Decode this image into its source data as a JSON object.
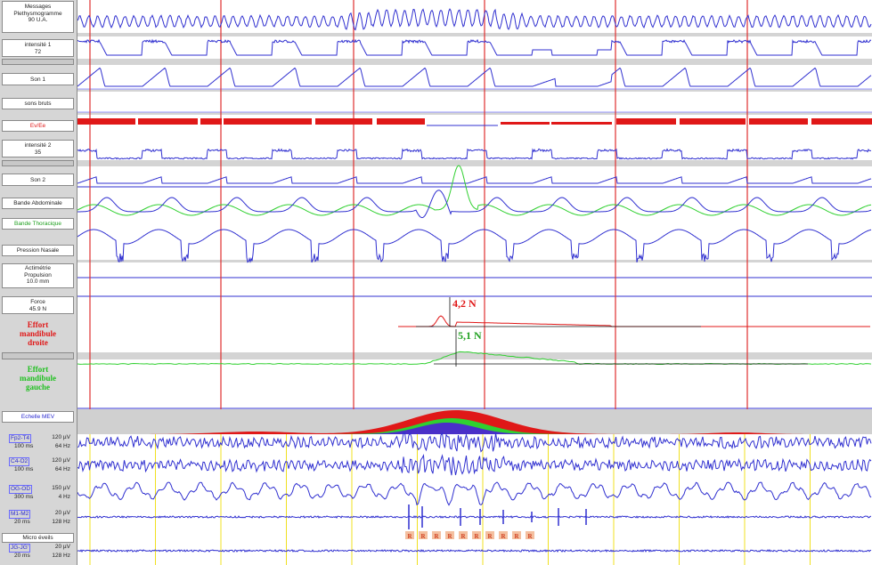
{
  "labels": {
    "messages": "Messages",
    "pleth": "Plethysmogramme",
    "pleth_val": "90 U.A.",
    "int1": "intensité 1",
    "int1_val": "72",
    "son1": "Son 1",
    "sons_bruts": "sons bruts",
    "evee": "Ev/Ee",
    "int2": "intensité 2",
    "int2_val": "35",
    "son2": "Son 2",
    "bande_abd": "Bande Abdominale",
    "bande_tho": "Bande Thoracique",
    "pression": "Pression Nasale",
    "actimetrie": "Actimétrie",
    "propulsion": "Propulsion",
    "propulsion_val": "10.0 mm",
    "force": "Force",
    "force_val": "45.9 N",
    "effort_d1": "Effort",
    "effort_d2": "mandibule",
    "effort_d3": "droite",
    "effort_g1": "Effort",
    "effort_g2": "mandibule",
    "effort_g3": "gauche",
    "echelle": "Echelle MEV",
    "micro": "Micro éveils"
  },
  "eeg": [
    {
      "chan": "Fp2-T4",
      "amp": "120 µV",
      "time": "100 ms",
      "freq": "64 Hz"
    },
    {
      "chan": "C4-O2",
      "amp": "120 µV",
      "time": "100 ms",
      "freq": "64 Hz"
    },
    {
      "chan": "OG-OD",
      "amp": "150 µV",
      "time": "300 ms",
      "freq": "4 Hz"
    },
    {
      "chan": "M1-M2",
      "amp": "20 µV",
      "time": "20 ms",
      "freq": "128 Hz"
    },
    {
      "chan": "JG-JG'",
      "amp": "20 µV",
      "time": "20 ms",
      "freq": "128 Hz"
    }
  ],
  "annotations": {
    "force_right": "4,2 N",
    "force_left": "5,1 N",
    "arousal_mark": "R"
  },
  "colors": {
    "trace": "#3030d0",
    "red": "#e01818",
    "green": "#30d030",
    "marker_red": "#e03030",
    "marker_yellow": "#f0e020"
  }
}
